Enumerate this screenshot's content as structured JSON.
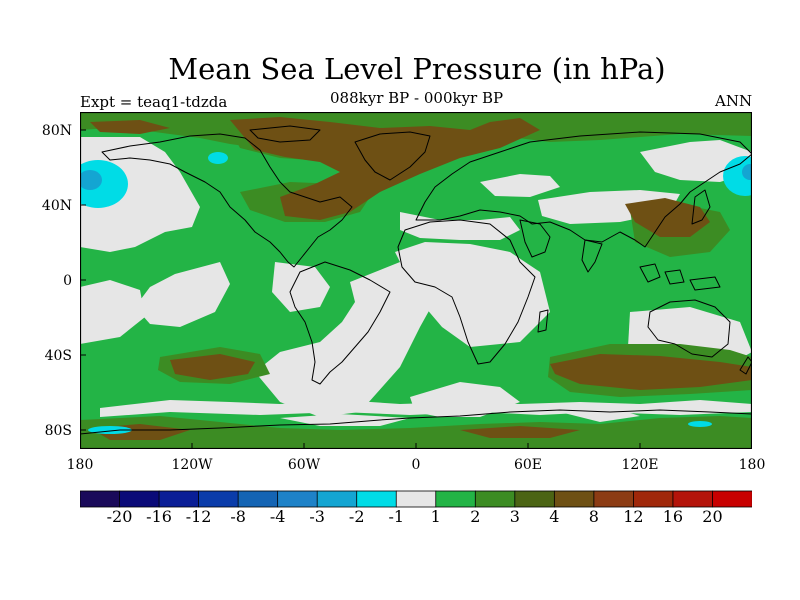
{
  "title": "Mean Sea Level Pressure (in hPa)",
  "experiment": "Expt = teaq1-tdzda",
  "subtitle": "088kyr BP - 000kyr BP",
  "season": "ANN",
  "axes": {
    "y_labels": [
      "80N",
      "40N",
      "0",
      "40S",
      "80S"
    ],
    "x_labels": [
      "180",
      "120W",
      "60W",
      "0",
      "60E",
      "120E",
      "180"
    ]
  },
  "colorbar": {
    "colors": [
      "#1a0a5a",
      "#0a0a78",
      "#0a1e96",
      "#0a3caa",
      "#1464b4",
      "#1e82c8",
      "#14a5d2",
      "#00dce6",
      "#e6e6e6",
      "#23b446",
      "#3c8c23",
      "#4b6414",
      "#6e5014",
      "#8c3c14",
      "#a0280a",
      "#b4140a",
      "#c80000"
    ],
    "labels": [
      "-20",
      "-16",
      "-12",
      "-8",
      "-4",
      "-3",
      "-2",
      "-1",
      "1",
      "2",
      "3",
      "4",
      "8",
      "12",
      "16",
      "20"
    ]
  },
  "colors": {
    "neutral": "#e6e6e6",
    "green": "#23b446",
    "dark_green": "#3c8c23",
    "brown": "#6e5014",
    "cyan": "#00dce6",
    "light_blue": "#14a5d2"
  }
}
